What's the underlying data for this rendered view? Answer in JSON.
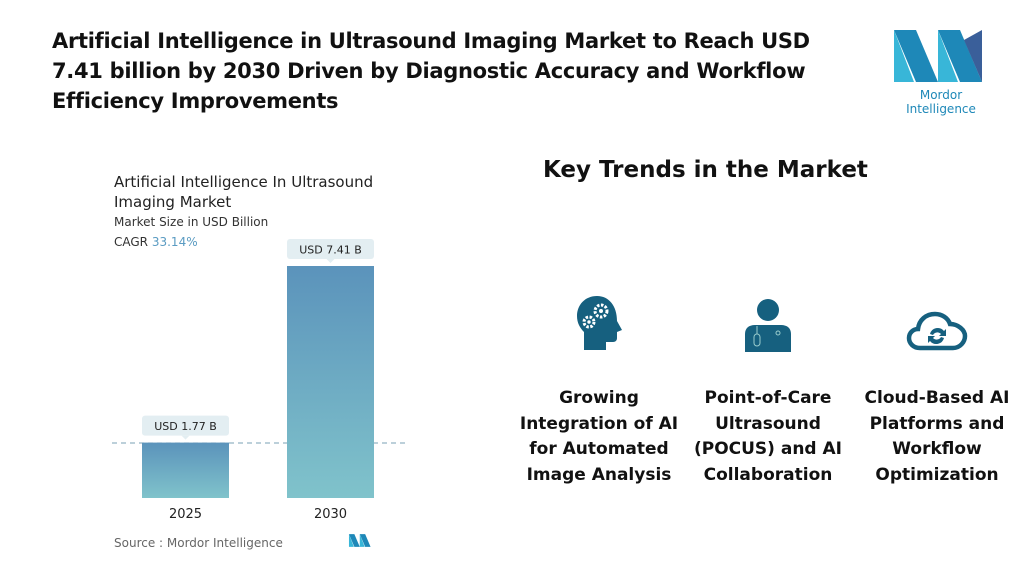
{
  "title": "Artificial Intelligence in Ultrasound Imaging Market to Reach USD 7.41 billion by 2030 Driven by Diagnostic Accuracy and Workflow Efficiency Improvements",
  "logo_text": "Mordor Intelligence",
  "colors": {
    "accent": "#16607f",
    "logo": "#1e88b8",
    "bar_top": "#5b93bb",
    "bar_bottom": "#80c3cb"
  },
  "chart_data": {
    "type": "bar",
    "title": "Artificial Intelligence In Ultrasound Imaging Market",
    "subtitle": "Market Size in USD Billion",
    "cagr_label": "CAGR",
    "cagr_value": "33.14%",
    "categories": [
      "2025",
      "2030"
    ],
    "values": [
      1.77,
      7.41
    ],
    "data_labels": [
      "USD 1.77 B",
      "USD 7.41 B"
    ],
    "grid": false,
    "source": "Source :  Mordor Intelligence"
  },
  "key_trends": {
    "heading": "Key Trends in the Market",
    "items": [
      {
        "icon": "head-gears-icon",
        "label": "Growing Integration of AI for Automated Image Analysis"
      },
      {
        "icon": "doctor-icon",
        "label": "Point-of-Care Ultrasound (POCUS) and AI Collaboration"
      },
      {
        "icon": "cloud-sync-icon",
        "label": "Cloud-Based AI Platforms and Workflow Optimization"
      }
    ]
  }
}
